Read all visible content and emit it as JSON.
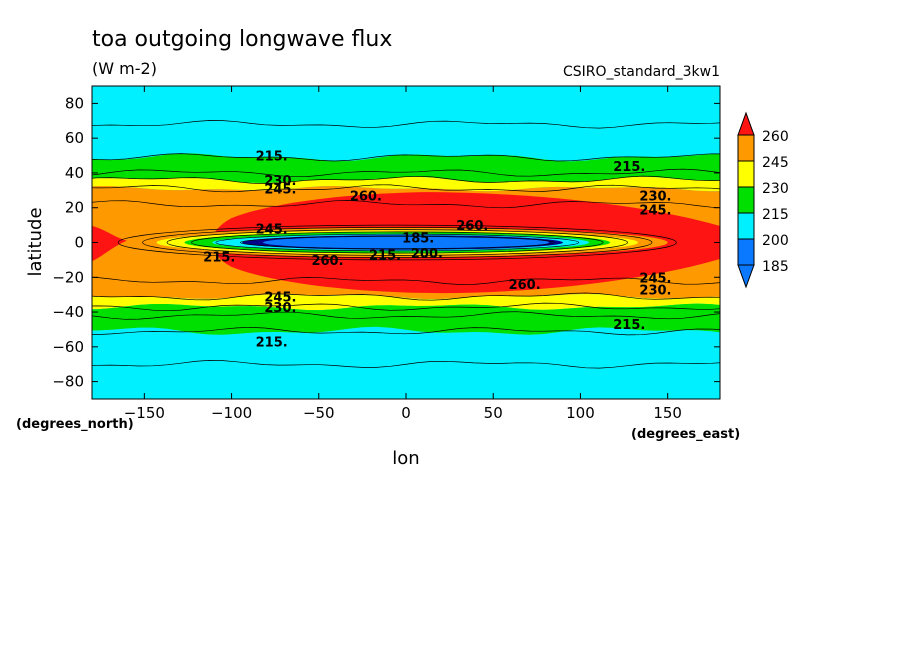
{
  "header": {
    "title": "toa outgoing longwave flux",
    "units": "(W m-2)",
    "run": "CSIRO_standard_3kw1"
  },
  "chart_data": {
    "type": "heatmap",
    "subtype": "filled-contour-map",
    "title": "toa outgoing longwave flux",
    "units": "(W m-2)",
    "xlabel": "lon",
    "ylabel": "latitude",
    "x_unit_label": "(degrees_east)",
    "y_unit_label": "(degrees_north)",
    "xlim": [
      -180,
      180
    ],
    "ylim": [
      -90,
      90
    ],
    "x_ticks": [
      -150,
      -100,
      -50,
      0,
      50,
      100,
      150
    ],
    "y_ticks": [
      80,
      60,
      40,
      20,
      0,
      -20,
      -40,
      -60,
      -80
    ],
    "contour_levels": [
      185,
      200,
      215,
      230,
      245,
      260
    ],
    "colorbar": {
      "labels": [
        "260",
        "245",
        "230",
        "215",
        "200",
        "185"
      ],
      "colors": [
        "#ff1414",
        "#ff9900",
        "#ffff00",
        "#00e000",
        "#00f0ff",
        "#0a78ff"
      ],
      "extend": "both"
    },
    "contour_labels": [
      {
        "text": "215.",
        "lon": -77,
        "lat": 50
      },
      {
        "text": "230.",
        "lon": -72,
        "lat": 36
      },
      {
        "text": "245.",
        "lon": -72,
        "lat": 31
      },
      {
        "text": "260.",
        "lon": -23,
        "lat": 27
      },
      {
        "text": "215.",
        "lon": 128,
        "lat": 44
      },
      {
        "text": "230.",
        "lon": 143,
        "lat": 27
      },
      {
        "text": "245.",
        "lon": 143,
        "lat": 19
      },
      {
        "text": "245.",
        "lon": -77,
        "lat": 8
      },
      {
        "text": "185.",
        "lon": 7,
        "lat": 3
      },
      {
        "text": "260.",
        "lon": 38,
        "lat": 10
      },
      {
        "text": "215.",
        "lon": -107,
        "lat": -8
      },
      {
        "text": "260.",
        "lon": -45,
        "lat": -10
      },
      {
        "text": "215.",
        "lon": -12,
        "lat": -7
      },
      {
        "text": "200.",
        "lon": 12,
        "lat": -6
      },
      {
        "text": "260.",
        "lon": 68,
        "lat": -24
      },
      {
        "text": "245.",
        "lon": 143,
        "lat": -20
      },
      {
        "text": "230.",
        "lon": 143,
        "lat": -27
      },
      {
        "text": "245.",
        "lon": -72,
        "lat": -31
      },
      {
        "text": "230.",
        "lon": -72,
        "lat": -37
      },
      {
        "text": "215.",
        "lon": 128,
        "lat": -47
      },
      {
        "text": "215.",
        "lon": -77,
        "lat": -57
      }
    ]
  }
}
